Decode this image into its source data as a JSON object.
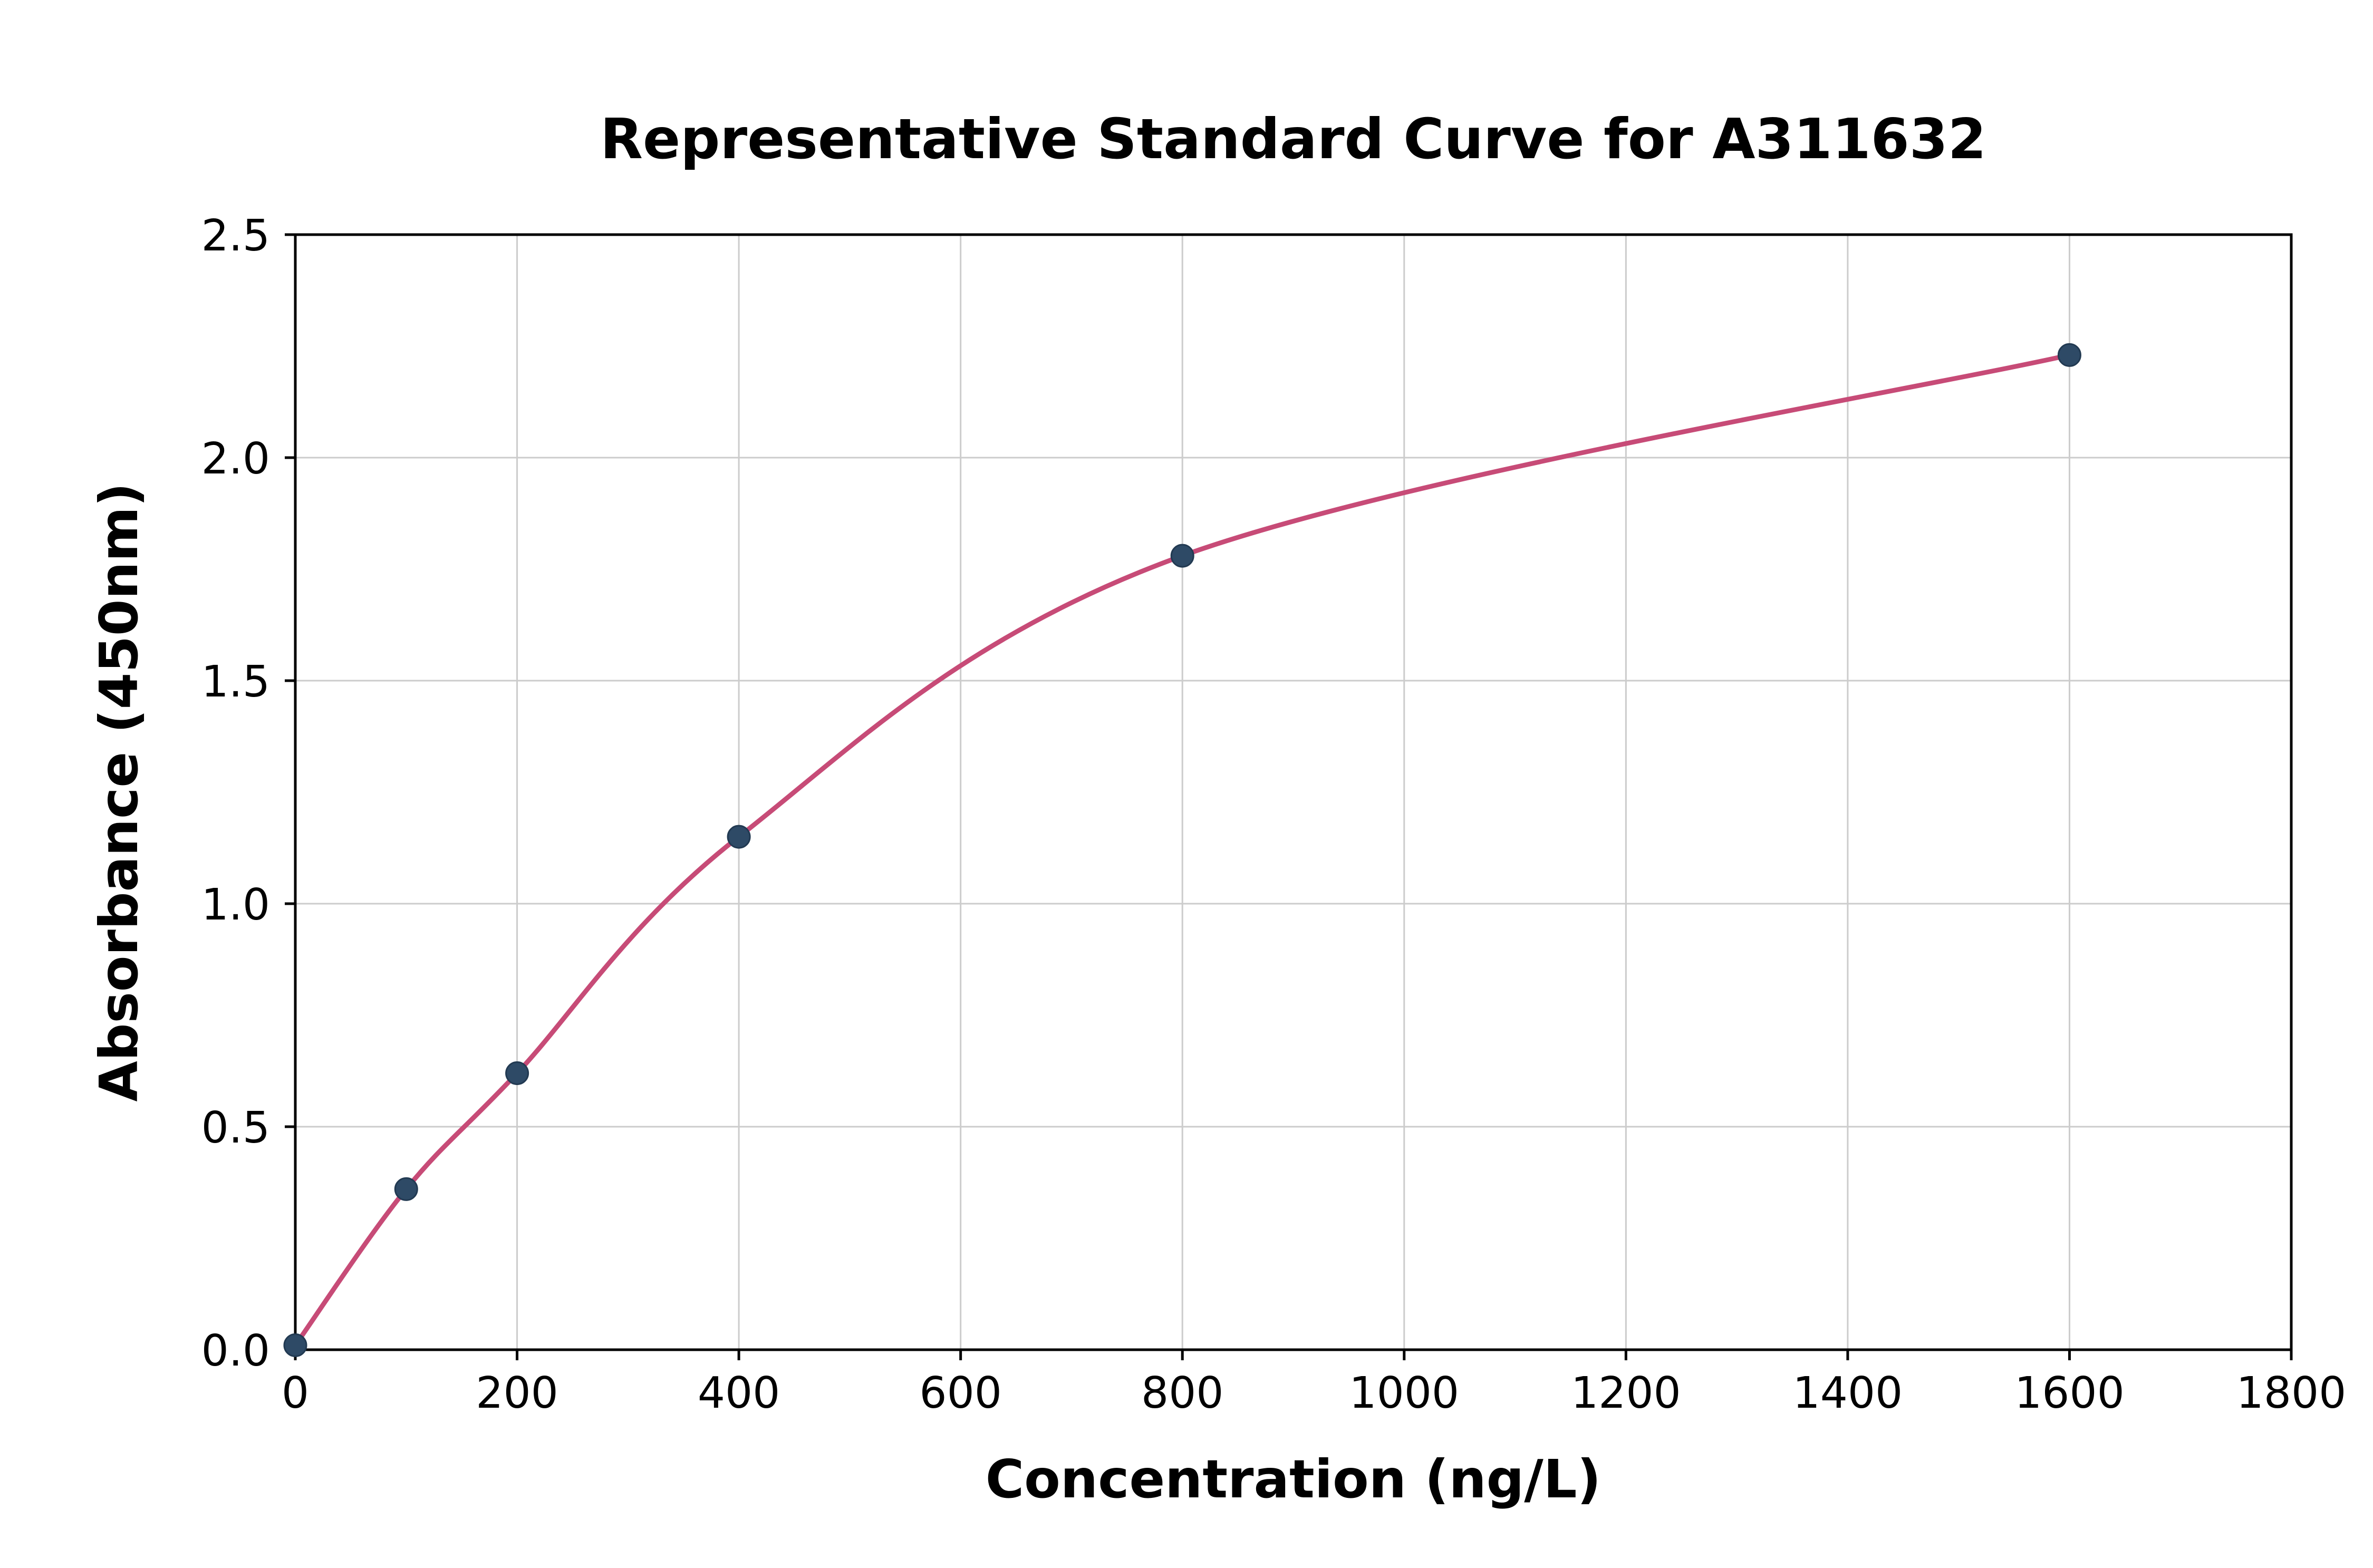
{
  "chart_data": {
    "type": "scatter",
    "title": "Representative Standard Curve for A311632",
    "xlabel": "Concentration (ng/L)",
    "ylabel": "Absorbance (450nm)",
    "xlim": [
      0,
      1800
    ],
    "ylim": [
      0,
      2.5
    ],
    "xticks": [
      0,
      200,
      400,
      600,
      800,
      1000,
      1200,
      1400,
      1600,
      1800
    ],
    "xtick_labels": [
      "0",
      "200",
      "400",
      "600",
      "800",
      "1000",
      "1200",
      "1400",
      "1600",
      "1800"
    ],
    "yticks": [
      0.0,
      0.5,
      1.0,
      1.5,
      2.0,
      2.5
    ],
    "ytick_labels": [
      "0.0",
      "0.5",
      "1.0",
      "1.5",
      "2.0",
      "2.5"
    ],
    "grid": true,
    "legend": "none",
    "points": [
      [
        0,
        0.01
      ],
      [
        100,
        0.36
      ],
      [
        200,
        0.62
      ],
      [
        400,
        1.15
      ],
      [
        800,
        1.78
      ],
      [
        1600,
        2.23
      ]
    ],
    "curve_color": "#c74b77",
    "point_color": "#2e4a66",
    "point_edge_color": "#223a52",
    "grid_color": "#cccccc",
    "spine_color": "#000000",
    "background_color": "#ffffff"
  }
}
